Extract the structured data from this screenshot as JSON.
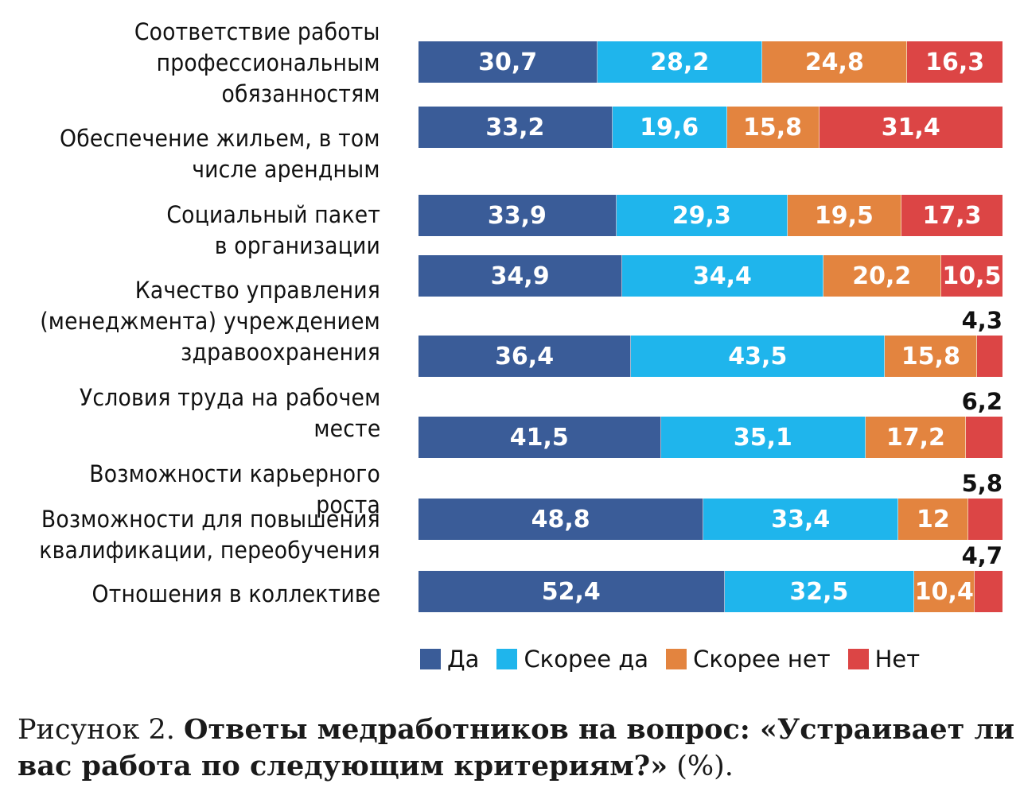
{
  "chart_data": {
    "type": "bar",
    "orientation": "horizontal",
    "stacked": true,
    "categories": [
      "Соответствие работы\nпрофессиональным\nобязанностям",
      "Обеспечение жильем, в том\nчисле арендным",
      "Социальный пакет\nв организации",
      "Качество управления\n(менеджмента) учреждением\nздравоохранения",
      "Условия труда на рабочем\nместе",
      "Возможности карьерного роста",
      "Возможности для повышения\nквалификации, переобучения",
      "Отношения в коллективе"
    ],
    "series": [
      {
        "name": "Да",
        "color": "#3a5c98",
        "values": [
          30.7,
          33.2,
          33.9,
          34.9,
          36.4,
          41.5,
          48.8,
          52.4
        ]
      },
      {
        "name": "Скорее да",
        "color": "#1fb5ec",
        "values": [
          28.2,
          19.6,
          29.3,
          34.4,
          43.5,
          35.1,
          33.4,
          32.5
        ]
      },
      {
        "name": "Скорее нет",
        "color": "#e3843f",
        "values": [
          24.8,
          15.8,
          19.5,
          20.2,
          15.8,
          17.2,
          12,
          10.4
        ]
      },
      {
        "name": "Нет",
        "color": "#dc4545",
        "values": [
          16.3,
          31.4,
          17.3,
          10.5,
          4.3,
          6.2,
          5.8,
          4.7
        ]
      }
    ],
    "value_labels": [
      [
        "30,7",
        "28,2",
        "24,8",
        "16,3"
      ],
      [
        "33,2",
        "19,6",
        "15,8",
        "31,4"
      ],
      [
        "33,9",
        "29,3",
        "19,5",
        "17,3"
      ],
      [
        "34,9",
        "34,4",
        "20,2",
        "10,5"
      ],
      [
        "36,4",
        "43,5",
        "15,8",
        "4,3"
      ],
      [
        "41,5",
        "35,1",
        "17,2",
        "6,2"
      ],
      [
        "48,8",
        "33,4",
        "12",
        "5,8"
      ],
      [
        "52,4",
        "32,5",
        "10,4",
        "4,7"
      ]
    ],
    "legend_position": "bottom",
    "grid": false
  },
  "caption": {
    "prefix": "Рисунок 2. ",
    "title": "Ответы медработников на вопрос: «Устраивает ли вас работа по следующим критериям?»",
    "suffix": " (%)."
  }
}
